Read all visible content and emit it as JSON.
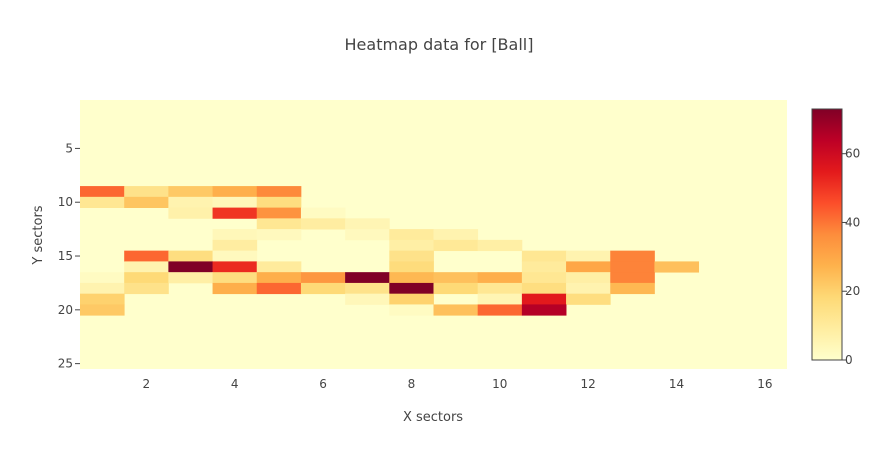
{
  "chart_data": {
    "type": "heatmap",
    "title": "Heatmap data for [Ball]",
    "xlabel": "X sectors",
    "ylabel": "Y sectors",
    "xlim": [
      0.5,
      16.5
    ],
    "ylim": [
      25.5,
      0.5
    ],
    "y_reversed": true,
    "x_ticks": [
      2,
      4,
      6,
      8,
      10,
      12,
      14,
      16
    ],
    "y_ticks": [
      5,
      10,
      15,
      20,
      25
    ],
    "zmin": 0,
    "zmax": 73,
    "colorbar_ticks": [
      0,
      20,
      40,
      60
    ],
    "colorscale": [
      [
        0.0,
        "#ffffcc"
      ],
      [
        0.125,
        "#ffeda0"
      ],
      [
        0.25,
        "#fed976"
      ],
      [
        0.375,
        "#feb24c"
      ],
      [
        0.5,
        "#fd8d3c"
      ],
      [
        0.625,
        "#fc4e2a"
      ],
      [
        0.75,
        "#e31a1c"
      ],
      [
        0.875,
        "#bd0026"
      ],
      [
        1.0,
        "#800026"
      ]
    ],
    "cells": [
      {
        "x": 1,
        "y": 9,
        "z": 42
      },
      {
        "x": 2,
        "y": 9,
        "z": 14
      },
      {
        "x": 3,
        "y": 9,
        "z": 22
      },
      {
        "x": 4,
        "y": 9,
        "z": 28
      },
      {
        "x": 5,
        "y": 9,
        "z": 37
      },
      {
        "x": 1,
        "y": 10,
        "z": 12
      },
      {
        "x": 2,
        "y": 10,
        "z": 23
      },
      {
        "x": 3,
        "y": 10,
        "z": 6
      },
      {
        "x": 4,
        "y": 10,
        "z": 4
      },
      {
        "x": 5,
        "y": 10,
        "z": 16
      },
      {
        "x": 3,
        "y": 11,
        "z": 7
      },
      {
        "x": 4,
        "y": 11,
        "z": 50
      },
      {
        "x": 5,
        "y": 11,
        "z": 35
      },
      {
        "x": 6,
        "y": 11,
        "z": 2
      },
      {
        "x": 5,
        "y": 12,
        "z": 12
      },
      {
        "x": 6,
        "y": 12,
        "z": 9
      },
      {
        "x": 7,
        "y": 12,
        "z": 5
      },
      {
        "x": 4,
        "y": 13,
        "z": 4
      },
      {
        "x": 5,
        "y": 13,
        "z": 3
      },
      {
        "x": 7,
        "y": 13,
        "z": 3
      },
      {
        "x": 8,
        "y": 13,
        "z": 10
      },
      {
        "x": 9,
        "y": 13,
        "z": 6
      },
      {
        "x": 4,
        "y": 14,
        "z": 9
      },
      {
        "x": 8,
        "y": 14,
        "z": 8
      },
      {
        "x": 9,
        "y": 14,
        "z": 11
      },
      {
        "x": 10,
        "y": 14,
        "z": 8
      },
      {
        "x": 2,
        "y": 15,
        "z": 42
      },
      {
        "x": 3,
        "y": 15,
        "z": 16
      },
      {
        "x": 4,
        "y": 15,
        "z": 3
      },
      {
        "x": 8,
        "y": 15,
        "z": 14
      },
      {
        "x": 11,
        "y": 15,
        "z": 12
      },
      {
        "x": 12,
        "y": 15,
        "z": 6
      },
      {
        "x": 13,
        "y": 15,
        "z": 38
      },
      {
        "x": 2,
        "y": 16,
        "z": 6
      },
      {
        "x": 3,
        "y": 16,
        "z": 73
      },
      {
        "x": 4,
        "y": 16,
        "z": 52
      },
      {
        "x": 5,
        "y": 16,
        "z": 10
      },
      {
        "x": 8,
        "y": 16,
        "z": 17
      },
      {
        "x": 11,
        "y": 16,
        "z": 10
      },
      {
        "x": 12,
        "y": 16,
        "z": 30
      },
      {
        "x": 13,
        "y": 16,
        "z": 38
      },
      {
        "x": 14,
        "y": 16,
        "z": 24
      },
      {
        "x": 1,
        "y": 17,
        "z": 2
      },
      {
        "x": 2,
        "y": 17,
        "z": 18
      },
      {
        "x": 3,
        "y": 17,
        "z": 8
      },
      {
        "x": 4,
        "y": 17,
        "z": 16
      },
      {
        "x": 5,
        "y": 17,
        "z": 28
      },
      {
        "x": 6,
        "y": 17,
        "z": 34
      },
      {
        "x": 7,
        "y": 17,
        "z": 73
      },
      {
        "x": 8,
        "y": 17,
        "z": 26
      },
      {
        "x": 9,
        "y": 17,
        "z": 24
      },
      {
        "x": 10,
        "y": 17,
        "z": 28
      },
      {
        "x": 11,
        "y": 17,
        "z": 12
      },
      {
        "x": 12,
        "y": 17,
        "z": 8
      },
      {
        "x": 13,
        "y": 17,
        "z": 38
      },
      {
        "x": 1,
        "y": 18,
        "z": 6
      },
      {
        "x": 2,
        "y": 18,
        "z": 14
      },
      {
        "x": 4,
        "y": 18,
        "z": 28
      },
      {
        "x": 5,
        "y": 18,
        "z": 42
      },
      {
        "x": 6,
        "y": 18,
        "z": 18
      },
      {
        "x": 7,
        "y": 18,
        "z": 14
      },
      {
        "x": 8,
        "y": 18,
        "z": 73
      },
      {
        "x": 9,
        "y": 18,
        "z": 18
      },
      {
        "x": 10,
        "y": 18,
        "z": 12
      },
      {
        "x": 11,
        "y": 18,
        "z": 16
      },
      {
        "x": 12,
        "y": 18,
        "z": 6
      },
      {
        "x": 13,
        "y": 18,
        "z": 26
      },
      {
        "x": 1,
        "y": 19,
        "z": 20
      },
      {
        "x": 7,
        "y": 19,
        "z": 4
      },
      {
        "x": 8,
        "y": 19,
        "z": 20
      },
      {
        "x": 10,
        "y": 19,
        "z": 5
      },
      {
        "x": 11,
        "y": 19,
        "z": 55
      },
      {
        "x": 12,
        "y": 19,
        "z": 16
      },
      {
        "x": 1,
        "y": 20,
        "z": 22
      },
      {
        "x": 8,
        "y": 20,
        "z": 2
      },
      {
        "x": 9,
        "y": 20,
        "z": 24
      },
      {
        "x": 10,
        "y": 20,
        "z": 42
      },
      {
        "x": 11,
        "y": 20,
        "z": 65
      }
    ]
  }
}
